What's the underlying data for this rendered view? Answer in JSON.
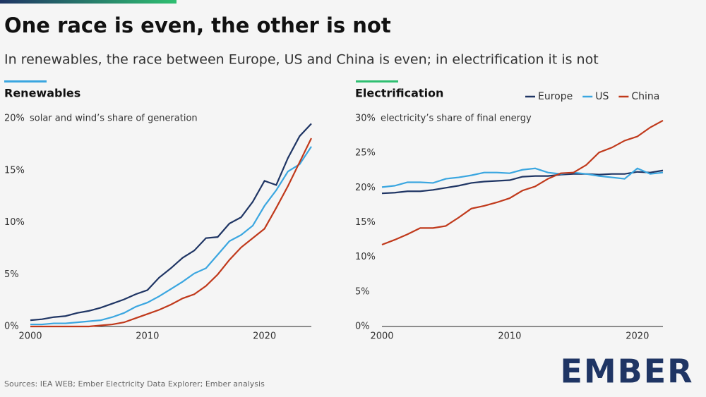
{
  "header": {
    "title": "One race is even, the other is not",
    "subtitle": "In renewables, the race between Europe, US and China is even; in electrification it is not"
  },
  "source": "Sources: IEA WEB; Ember Electricity Data Explorer; Ember analysis",
  "logo": "EMBER",
  "chart_data": [
    {
      "type": "line",
      "title": "Renewables",
      "annotation": "solar and wind’s share of generation",
      "x": [
        2000,
        2001,
        2002,
        2003,
        2004,
        2005,
        2006,
        2007,
        2008,
        2009,
        2010,
        2011,
        2012,
        2013,
        2014,
        2015,
        2016,
        2017,
        2018,
        2019,
        2020,
        2021,
        2022,
        2023,
        2024
      ],
      "xlim": [
        2000,
        2024
      ],
      "xticks": [
        2000,
        2010,
        2020
      ],
      "ylim": [
        0,
        20
      ],
      "yticks": [
        {
          "value": 0,
          "label": "0%"
        },
        {
          "value": 5,
          "label": "5%"
        },
        {
          "value": 10,
          "label": "10%"
        },
        {
          "value": 15,
          "label": "15%"
        },
        {
          "value": 20,
          "label": "20%"
        }
      ],
      "grid": false,
      "series": [
        {
          "color": "#1f3564",
          "values": [
            0.6,
            0.7,
            0.9,
            1.0,
            1.3,
            1.5,
            1.8,
            2.2,
            2.6,
            3.1,
            3.5,
            4.7,
            5.6,
            6.6,
            7.3,
            8.5,
            8.6,
            9.9,
            10.5,
            12.0,
            14.0,
            13.6,
            16.2,
            18.3,
            19.5
          ]
        },
        {
          "color": "#3aa6e0",
          "values": [
            0.2,
            0.2,
            0.3,
            0.3,
            0.4,
            0.5,
            0.6,
            0.9,
            1.3,
            1.9,
            2.3,
            2.9,
            3.6,
            4.3,
            5.1,
            5.6,
            6.9,
            8.2,
            8.8,
            9.7,
            11.6,
            13.1,
            14.9,
            15.6,
            17.3
          ]
        },
        {
          "color": "#c0391b",
          "values": [
            0,
            0,
            0,
            0,
            0,
            0,
            0.1,
            0.2,
            0.4,
            0.8,
            1.2,
            1.6,
            2.1,
            2.7,
            3.1,
            3.9,
            5.0,
            6.4,
            7.6,
            8.5,
            9.4,
            11.4,
            13.5,
            15.8,
            18.1
          ]
        }
      ]
    },
    {
      "type": "line",
      "title": "Electrification",
      "annotation": "electricity’s share of final energy",
      "x": [
        2000,
        2001,
        2002,
        2003,
        2004,
        2005,
        2006,
        2007,
        2008,
        2009,
        2010,
        2011,
        2012,
        2013,
        2014,
        2015,
        2016,
        2017,
        2018,
        2019,
        2020,
        2021,
        2022
      ],
      "xlim": [
        2000,
        2022
      ],
      "xticks": [
        2000,
        2010,
        2020
      ],
      "ylim": [
        0,
        30
      ],
      "yticks": [
        {
          "value": 0,
          "label": "0%"
        },
        {
          "value": 5,
          "label": "5%"
        },
        {
          "value": 10,
          "label": "10%"
        },
        {
          "value": 15,
          "label": "15%"
        },
        {
          "value": 20,
          "label": "20%"
        },
        {
          "value": 25,
          "label": "25%"
        },
        {
          "value": 30,
          "label": "30%"
        }
      ],
      "grid": false,
      "legend": "top-right",
      "series": [
        {
          "name": "Europe",
          "color": "#1f3564",
          "values": [
            19.2,
            19.3,
            19.5,
            19.5,
            19.7,
            20.0,
            20.3,
            20.7,
            20.9,
            21.0,
            21.1,
            21.6,
            21.7,
            21.7,
            21.9,
            22.0,
            22.0,
            21.9,
            22.0,
            22.0,
            22.3,
            22.2,
            22.5
          ]
        },
        {
          "name": "US",
          "color": "#3aa6e0",
          "values": [
            20.1,
            20.3,
            20.8,
            20.8,
            20.7,
            21.3,
            21.5,
            21.8,
            22.2,
            22.2,
            22.1,
            22.6,
            22.8,
            22.2,
            22.0,
            22.2,
            22.0,
            21.7,
            21.5,
            21.3,
            22.8,
            22.0,
            22.2
          ]
        },
        {
          "name": "China",
          "color": "#c0391b",
          "values": [
            11.8,
            12.5,
            13.3,
            14.2,
            14.2,
            14.5,
            15.7,
            17.0,
            17.4,
            17.9,
            18.5,
            19.6,
            20.2,
            21.3,
            22.1,
            22.2,
            23.3,
            25.1,
            25.8,
            26.8,
            27.4,
            28.7,
            29.7
          ]
        }
      ]
    }
  ]
}
